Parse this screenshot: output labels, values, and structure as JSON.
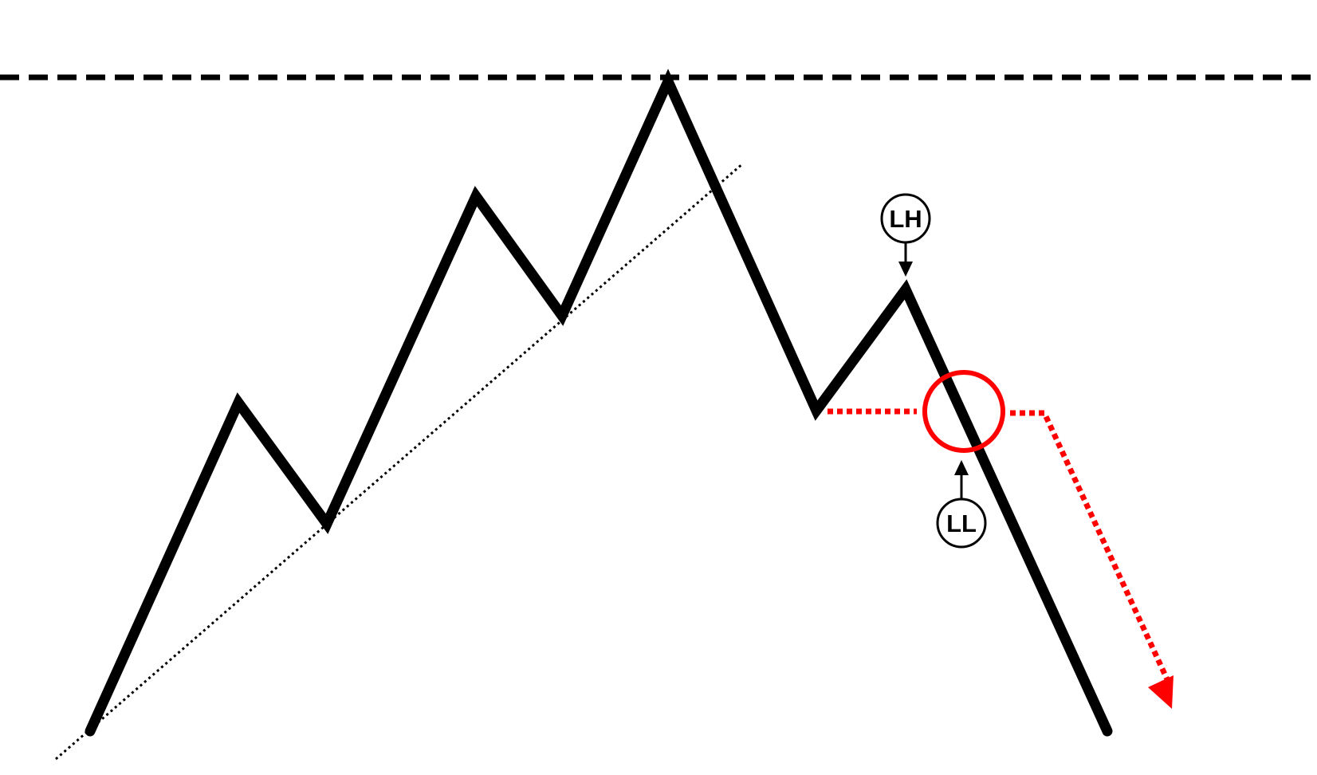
{
  "diagram": {
    "labels": {
      "lower_high": "LH",
      "lower_low": "LL"
    },
    "colors": {
      "price_line": "#000000",
      "resistance_line": "#000000",
      "trendline": "#000000",
      "breakout_marker": "#ff0000",
      "projection_arrow": "#ff0000",
      "callout": "#000000"
    }
  }
}
